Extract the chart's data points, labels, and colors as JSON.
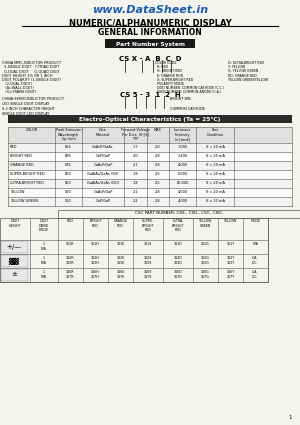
{
  "title_url": "www.DataSheet.in",
  "title_main": "NUMERIC/ALPHANUMERIC DISPLAY",
  "title_sub": "GENERAL INFORMATION",
  "part_number_label": "Part Number System",
  "part_number_code": "CS X - A  B  C  D",
  "part_number_code2": "CS 5 - 3  1  2  H",
  "section1_left": [
    "CHINA MMC-INDUCTOR PRODUCT",
    "  5-SINGLE DIGIT   7-TRIAD DIGIT",
    "  D-DUAL DIGIT     Q-QUAD DIGIT",
    "DIGIT HEIGHT 1% OR 1 INCH",
    "DIGIT POLARITY (1-SINGLE DIGIT)",
    "   (2-DUAL DIGIT)",
    "   (A=WALL DIGIT)",
    "   (G=TRANS DIGIT)"
  ],
  "section1_right": [
    "COLOR CODE",
    "  R: RED",
    "  H: BRIGHT RED",
    "  E: ORANGE ROD",
    "  S: SUPER-BRIGHT RED",
    "  POLARITY MODE",
    "  ODD NUMBER: COMMON CATHODE (C.C.)",
    "  EVEN NUMBER: COMMON ANODE (C.A.)"
  ],
  "section1_right2": [
    "D: ULTRA-BRIGHT RED",
    "Y: YELLOW",
    "G: YELLOW GREEN",
    "RD: ORANGE RED",
    "YELLOW GREEN/YELLOW"
  ],
  "section2_left": [
    "CHINA SEMICONDUCTOR PRODUCT",
    "LED SINGLE DIGIT DISPLAY",
    "0.3 INCH CHARACTER HEIGHT",
    "SINGLE DIGIT LED DISPLAY"
  ],
  "section2_right": [
    "BRIGHT BIN",
    "COMMON CATHODE"
  ],
  "eo_title": "Electro-Optical Characteristics (Ta = 25°C)",
  "eo_data": [
    [
      "RED",
      "655",
      "GaAsP/GaAs",
      "1.7",
      "2.0",
      "1,000",
      "If = 20 mA"
    ],
    [
      "BRIGHT RED",
      "695",
      "GaP/GaP",
      "2.0",
      "2.8",
      "1,400",
      "If = 20 mA"
    ],
    [
      "ORANGE RED",
      "635",
      "GaAsP/GaP",
      "2.1",
      "2.8",
      "4,000",
      "If = 20 mA"
    ],
    [
      "SUPER-BRIGHT RED",
      "660",
      "GaAlAs/GaAs (SH)",
      "1.8",
      "2.5",
      "6,000",
      "If = 20 mA"
    ],
    [
      "ULTRA-BRIGHT RED",
      "660",
      "GaAlAs/GaAs (DH)",
      "1.8",
      "2.5",
      "60,000",
      "If = 20 mA"
    ],
    [
      "YELLOW",
      "590",
      "GaAsP/GaP",
      "2.1",
      "2.8",
      "4,000",
      "If = 20 mA"
    ],
    [
      "YELLOW GREEN",
      "510",
      "GaP/GaP",
      "2.2",
      "2.8",
      "4,000",
      "If = 20 mA"
    ]
  ],
  "csc_title": "CSC PART NUMBER: CSS-, CSD-, CST-, CSD-",
  "csc_rows": [
    [
      "icon_plus",
      "1\nN/A",
      "311R",
      "311H",
      "311E",
      "311S",
      "311D",
      "311G",
      "311Y",
      "N/A"
    ],
    [
      "icon_7seg",
      "1\nN/A",
      "312R\n313R",
      "312H\n313H",
      "312E\n313E",
      "312S\n313S",
      "312D\n313D",
      "312G\n313G",
      "312Y\n313Y",
      "C.A.\nC.C."
    ],
    [
      "icon_pm",
      "1\nN/A",
      "316R\n317R",
      "316H\n317H",
      "316E\n317E",
      "316S\n317S",
      "316D\n317D",
      "316G\n317G",
      "316Y\n317Y",
      "C.A.\nC.C."
    ]
  ],
  "bg_color": "#f5f3ee",
  "url_color": "#1a5cb0",
  "watermark_colors": [
    "#b0c8e8",
    "#e8c090"
  ]
}
